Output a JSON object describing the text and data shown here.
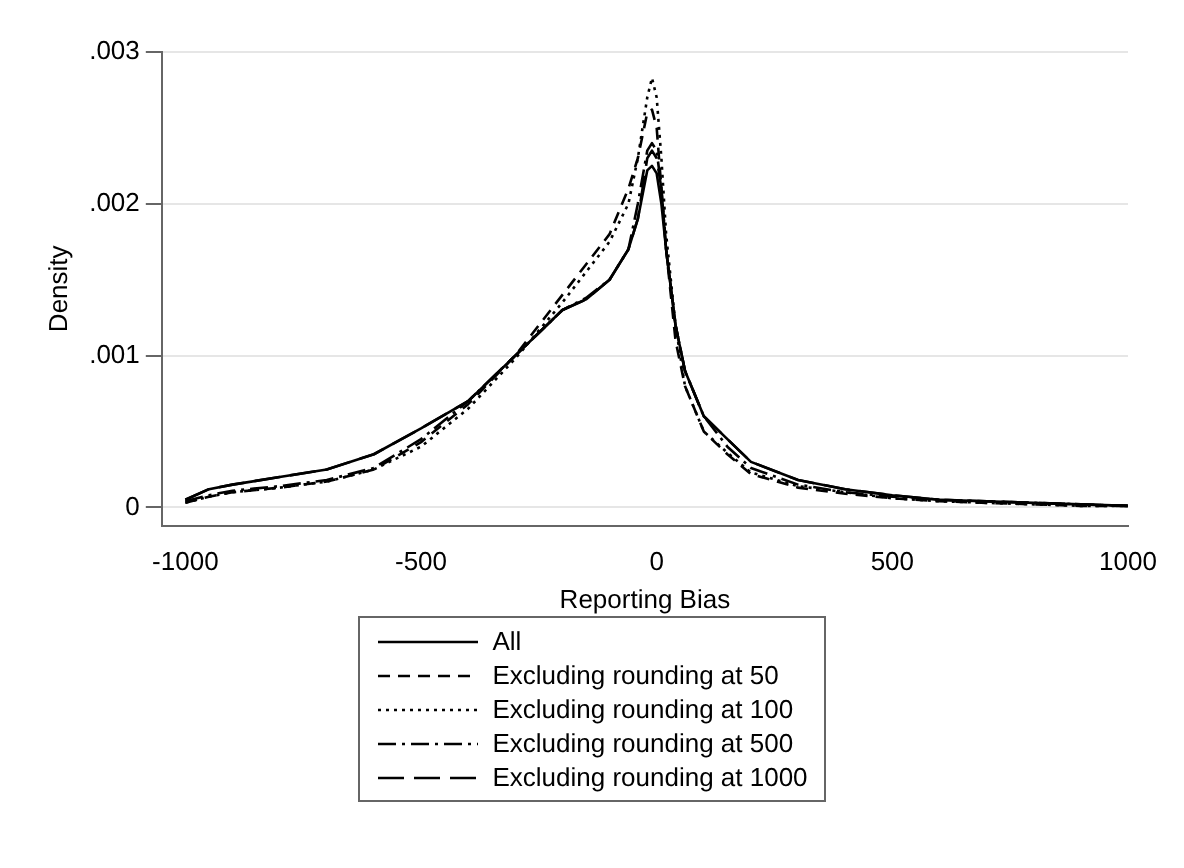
{
  "chart_data": {
    "type": "line",
    "xlabel": "Reporting Bias",
    "ylabel": "Density",
    "x": [
      -1000,
      -950,
      -900,
      -800,
      -700,
      -600,
      -500,
      -400,
      -300,
      -200,
      -150,
      -100,
      -60,
      -40,
      -20,
      -10,
      0,
      10,
      20,
      40,
      60,
      100,
      150,
      200,
      300,
      400,
      500,
      600,
      700,
      800,
      900,
      1000
    ],
    "series": [
      {
        "name": "All",
        "color": "#000000",
        "line_style": "solid",
        "values": [
          5e-05,
          0.00012,
          0.00015,
          0.0002,
          0.00025,
          0.00035,
          0.00052,
          0.0007,
          0.001,
          0.0013,
          0.00137,
          0.0015,
          0.0017,
          0.0019,
          0.00222,
          0.00225,
          0.0022,
          0.002,
          0.0017,
          0.0012,
          0.0009,
          0.0006,
          0.00045,
          0.0003,
          0.00018,
          0.00012,
          8e-05,
          5e-05,
          4e-05,
          3e-05,
          2e-05,
          1e-05
        ]
      },
      {
        "name": "Excluding rounding at 50",
        "color": "#000000",
        "line_style": "dashed",
        "values": [
          3e-05,
          7e-05,
          0.0001,
          0.00013,
          0.00017,
          0.00025,
          0.00043,
          0.00068,
          0.001,
          0.0014,
          0.0016,
          0.0018,
          0.0021,
          0.0023,
          0.0026,
          0.00262,
          0.0025,
          0.0021,
          0.0017,
          0.0011,
          0.0008,
          0.0005,
          0.00035,
          0.00022,
          0.00013,
          9e-05,
          6e-05,
          4e-05,
          3e-05,
          2e-05,
          1e-05,
          1e-05
        ]
      },
      {
        "name": "Excluding rounding at 100",
        "color": "#000000",
        "line_style": "dotted",
        "values": [
          3e-05,
          7e-05,
          0.0001,
          0.00013,
          0.00017,
          0.00025,
          0.0004,
          0.00065,
          0.00098,
          0.00135,
          0.00155,
          0.00175,
          0.002,
          0.0023,
          0.0027,
          0.00283,
          0.0027,
          0.0023,
          0.0018,
          0.0012,
          0.0008,
          0.0005,
          0.00036,
          0.00023,
          0.00014,
          0.0001,
          6e-05,
          4e-05,
          3e-05,
          2e-05,
          1e-05,
          1e-05
        ]
      },
      {
        "name": "Excluding rounding at 500",
        "color": "#000000",
        "line_style": "dashdot",
        "values": [
          4e-05,
          8e-05,
          0.00011,
          0.00014,
          0.00018,
          0.00026,
          0.00045,
          0.0007,
          0.001,
          0.0013,
          0.00138,
          0.0015,
          0.0017,
          0.002,
          0.00235,
          0.0024,
          0.00235,
          0.0021,
          0.0017,
          0.0012,
          0.0009,
          0.0006,
          0.0004,
          0.00026,
          0.00015,
          0.0001,
          7e-05,
          5e-05,
          4e-05,
          3e-05,
          2e-05,
          1e-05
        ]
      },
      {
        "name": "Excluding rounding at 1000",
        "color": "#000000",
        "line_style": "longdash",
        "values": [
          5e-05,
          0.00012,
          0.00015,
          0.0002,
          0.00025,
          0.00035,
          0.00052,
          0.0007,
          0.001,
          0.0013,
          0.00137,
          0.0015,
          0.0017,
          0.0019,
          0.0023,
          0.00235,
          0.0023,
          0.0021,
          0.0017,
          0.0012,
          0.0009,
          0.0006,
          0.00045,
          0.0003,
          0.00018,
          0.00012,
          8e-05,
          5e-05,
          4e-05,
          3e-05,
          2e-05,
          1e-05
        ]
      }
    ],
    "xlim": [
      -1050,
      1000
    ],
    "xticks": [
      -1000,
      -500,
      0,
      500,
      1000
    ],
    "ylim": [
      -0.00012,
      0.003
    ],
    "yticks": [
      0,
      {
        "value": 0.001,
        "label": ".001"
      },
      {
        "value": 0.002,
        "label": ".002"
      },
      {
        "value": 0.003,
        "label": ".003"
      }
    ],
    "grid": "y",
    "legend": "bottom"
  }
}
